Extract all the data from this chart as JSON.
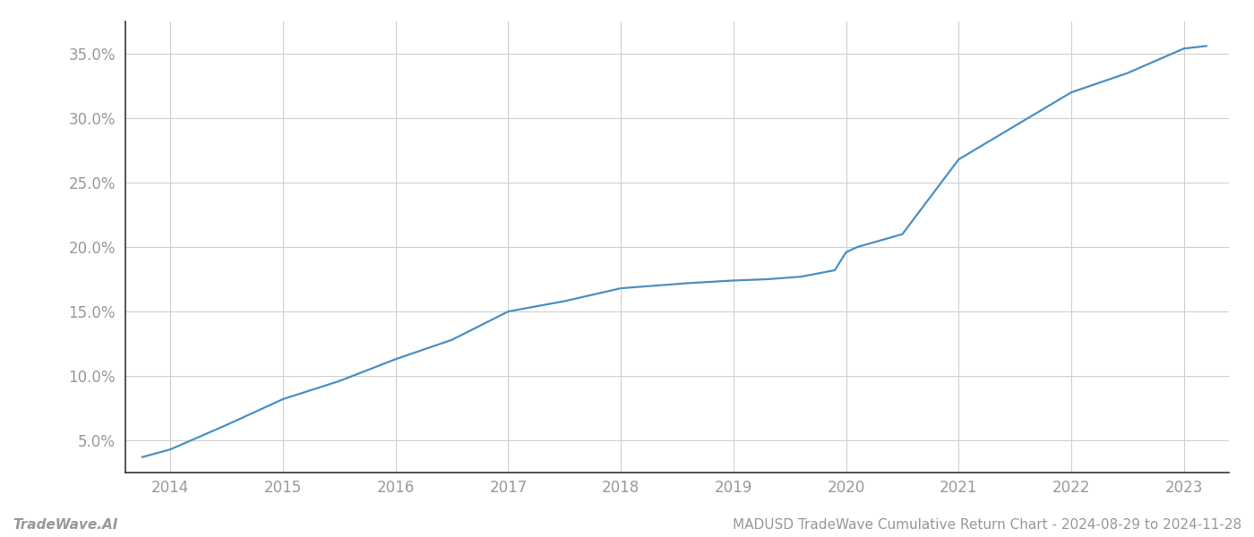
{
  "x_years": [
    2013.75,
    2014,
    2014.5,
    2015,
    2015.5,
    2016,
    2016.5,
    2017,
    2017.5,
    2018,
    2018.3,
    2018.6,
    2019,
    2019.3,
    2019.6,
    2019.9,
    2020.0,
    2020.1,
    2020.5,
    2021,
    2021.5,
    2022,
    2022.5,
    2023,
    2023.2
  ],
  "y_values": [
    0.037,
    0.043,
    0.062,
    0.082,
    0.096,
    0.113,
    0.128,
    0.15,
    0.158,
    0.168,
    0.17,
    0.172,
    0.174,
    0.175,
    0.177,
    0.182,
    0.196,
    0.2,
    0.21,
    0.268,
    0.294,
    0.32,
    0.335,
    0.354,
    0.356
  ],
  "line_color": "#4a90c4",
  "line_width": 1.6,
  "background_color": "#ffffff",
  "grid_color": "#d0d0d0",
  "ylim": [
    0.025,
    0.375
  ],
  "yticks": [
    0.05,
    0.1,
    0.15,
    0.2,
    0.25,
    0.3,
    0.35
  ],
  "xticks": [
    2014,
    2015,
    2016,
    2017,
    2018,
    2019,
    2020,
    2021,
    2022,
    2023
  ],
  "xlim": [
    2013.6,
    2023.4
  ],
  "footer_left": "TradeWave.AI",
  "footer_right": "MADUSD TradeWave Cumulative Return Chart - 2024-08-29 to 2024-11-28",
  "tick_label_color": "#999999",
  "spine_color": "#333333",
  "footer_color": "#999999"
}
